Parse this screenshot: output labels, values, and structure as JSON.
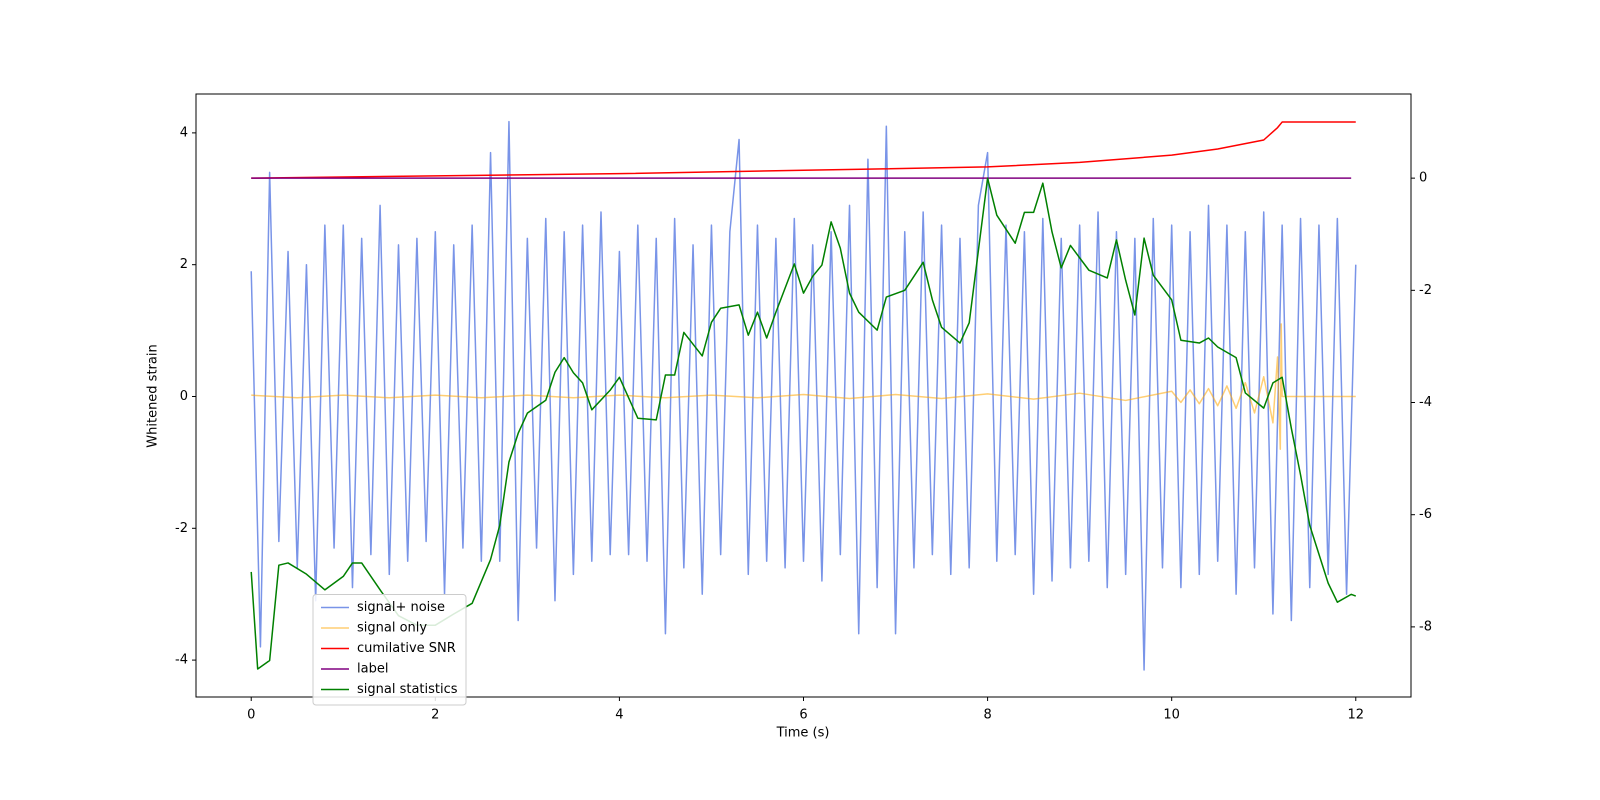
{
  "chart_data": {
    "type": "line",
    "xlabel": "Time (s)",
    "ylabel": "Whitened strain",
    "xlim": [
      -0.6,
      12.6
    ],
    "xticks": [
      0,
      2,
      4,
      6,
      8,
      10,
      12
    ],
    "ylim": [
      -4.56,
      4.59
    ],
    "yticks": [
      -4,
      -2,
      0,
      2,
      4
    ],
    "y2lim": [
      -9.25,
      1.5
    ],
    "y2ticks": [
      -8,
      -6,
      -4,
      -2,
      0
    ],
    "legend": "lower left",
    "series": [
      {
        "name": "signal+ noise",
        "color": "#7994e8",
        "x": [
          0,
          0.1,
          0.2,
          0.3,
          0.4,
          0.5,
          0.6,
          0.7,
          0.8,
          0.9,
          1,
          1.1,
          1.2,
          1.3,
          1.4,
          1.5,
          1.6,
          1.7,
          1.8,
          1.9,
          2,
          2.1,
          2.2,
          2.3,
          2.4,
          2.5,
          2.6,
          2.7,
          2.8,
          2.9,
          3,
          3.1,
          3.2,
          3.3,
          3.4,
          3.5,
          3.6,
          3.7,
          3.8,
          3.9,
          4,
          4.1,
          4.2,
          4.3,
          4.4,
          4.5,
          4.6,
          4.7,
          4.8,
          4.9,
          5,
          5.1,
          5.2,
          5.3,
          5.4,
          5.5,
          5.6,
          5.7,
          5.8,
          5.9,
          6,
          6.1,
          6.2,
          6.3,
          6.4,
          6.5,
          6.6,
          6.7,
          6.8,
          6.9,
          7,
          7.1,
          7.2,
          7.3,
          7.4,
          7.5,
          7.6,
          7.7,
          7.8,
          7.9,
          8,
          8.1,
          8.2,
          8.3,
          8.4,
          8.5,
          8.6,
          8.7,
          8.8,
          8.9,
          9,
          9.1,
          9.2,
          9.3,
          9.4,
          9.5,
          9.6,
          9.7,
          9.8,
          9.9,
          10,
          10.1,
          10.2,
          10.3,
          10.4,
          10.5,
          10.6,
          10.7,
          10.8,
          10.9,
          11,
          11.1,
          11.2,
          11.3,
          11.4,
          11.5,
          11.6,
          11.7,
          11.8,
          11.9,
          12
        ],
        "values": [
          1.9,
          -3.8,
          3.4,
          -2.2,
          2.2,
          -2.6,
          2.0,
          -3.1,
          2.6,
          -2.3,
          2.6,
          -2.9,
          2.4,
          -2.4,
          2.9,
          -2.7,
          2.3,
          -2.5,
          2.4,
          -2.2,
          2.5,
          -3.0,
          2.3,
          -2.3,
          2.6,
          -2.5,
          3.7,
          -2.5,
          4.17,
          -3.4,
          2.4,
          -2.3,
          2.7,
          -3.1,
          2.5,
          -2.7,
          2.6,
          -2.5,
          2.8,
          -2.4,
          2.2,
          -2.4,
          2.6,
          -2.5,
          2.4,
          -3.6,
          2.7,
          -2.6,
          2.3,
          -3.0,
          2.6,
          -2.4,
          2.5,
          3.9,
          -2.7,
          2.6,
          -2.5,
          2.4,
          -2.6,
          2.7,
          -2.5,
          2.3,
          -2.8,
          2.5,
          -2.4,
          2.9,
          -3.6,
          3.6,
          -2.9,
          4.1,
          -3.6,
          2.5,
          -2.6,
          2.8,
          -2.4,
          2.6,
          -2.7,
          2.4,
          -2.6,
          2.9,
          3.7,
          -2.5,
          2.6,
          -2.4,
          2.5,
          -3.0,
          2.7,
          -2.8,
          2.4,
          -2.6,
          2.6,
          -2.5,
          2.8,
          -2.9,
          2.5,
          -2.7,
          2.4,
          -4.15,
          2.7,
          -2.6,
          2.6,
          -2.9,
          2.5,
          -2.7,
          2.9,
          -2.5,
          2.6,
          -3.0,
          2.5,
          -2.6,
          2.8,
          -3.3,
          2.6,
          -3.4,
          2.7,
          -2.9,
          2.6,
          -2.7,
          2.7,
          -3.0,
          2.0
        ]
      },
      {
        "name": "signal only",
        "color": "#ffa500",
        "x": [
          0,
          0.5,
          1,
          1.5,
          2,
          2.5,
          3,
          3.5,
          4,
          4.5,
          5,
          5.5,
          6,
          6.5,
          7,
          7.5,
          8,
          8.5,
          9,
          9.5,
          10,
          10.1,
          10.2,
          10.3,
          10.4,
          10.5,
          10.6,
          10.7,
          10.8,
          10.9,
          11,
          11.1,
          11.15,
          11.18,
          11.19,
          11.2,
          12
        ],
        "values": [
          0.02,
          -0.02,
          0.02,
          -0.02,
          0.02,
          -0.02,
          0.02,
          -0.02,
          0.02,
          -0.02,
          0.02,
          -0.02,
          0.03,
          -0.03,
          0.03,
          -0.03,
          0.04,
          -0.04,
          0.05,
          -0.06,
          0.08,
          -0.09,
          0.1,
          -0.11,
          0.12,
          -0.14,
          0.16,
          -0.18,
          0.21,
          -0.25,
          0.3,
          -0.4,
          0.6,
          -0.8,
          1.1,
          0,
          0
        ]
      },
      {
        "name": "cumilative SNR",
        "color": "red",
        "axis": "y2",
        "x": [
          0,
          2,
          4,
          6,
          8,
          9,
          10,
          10.5,
          11,
          11.15,
          11.2,
          12
        ],
        "values": [
          0,
          0.04,
          0.08,
          0.14,
          0.2,
          0.28,
          0.41,
          0.52,
          0.68,
          0.9,
          1.0,
          1.0
        ]
      },
      {
        "name": "label",
        "color": "purple",
        "axis": "y2",
        "x": [
          0,
          11.95
        ],
        "values": [
          0,
          0
        ]
      },
      {
        "name": "signal statistics",
        "color": "green",
        "axis": "y2",
        "x": [
          0,
          0.07,
          0.2,
          0.3,
          0.4,
          0.6,
          0.8,
          1.0,
          1.1,
          1.2,
          1.4,
          1.6,
          1.8,
          2.0,
          2.2,
          2.4,
          2.6,
          2.7,
          2.8,
          2.9,
          3.0,
          3.2,
          3.3,
          3.4,
          3.5,
          3.6,
          3.7,
          3.9,
          4.0,
          4.2,
          4.4,
          4.5,
          4.6,
          4.7,
          4.9,
          5.0,
          5.1,
          5.3,
          5.4,
          5.5,
          5.6,
          5.7,
          5.9,
          6.0,
          6.1,
          6.2,
          6.3,
          6.4,
          6.5,
          6.6,
          6.8,
          6.9,
          7.1,
          7.3,
          7.4,
          7.5,
          7.7,
          7.8,
          8.0,
          8.1,
          8.3,
          8.4,
          8.5,
          8.6,
          8.7,
          8.8,
          8.9,
          9.1,
          9.3,
          9.4,
          9.5,
          9.6,
          9.7,
          9.8,
          10.0,
          10.1,
          10.3,
          10.4,
          10.5,
          10.7,
          10.8,
          11.0,
          11.1,
          11.2,
          11.3,
          11.4,
          11.5,
          11.7,
          11.8,
          11.95,
          12.0
        ],
        "values": [
          -7.02,
          -8.75,
          -8.6,
          -6.9,
          -6.86,
          -7.06,
          -7.34,
          -7.1,
          -6.86,
          -6.86,
          -7.34,
          -7.8,
          -7.97,
          -7.97,
          -7.77,
          -7.58,
          -6.8,
          -6.19,
          -5.06,
          -4.55,
          -4.19,
          -3.96,
          -3.46,
          -3.2,
          -3.47,
          -3.65,
          -4.13,
          -3.78,
          -3.55,
          -4.28,
          -4.31,
          -3.51,
          -3.51,
          -2.75,
          -3.17,
          -2.57,
          -2.32,
          -2.26,
          -2.8,
          -2.39,
          -2.85,
          -2.39,
          -1.53,
          -2.05,
          -1.75,
          -1.55,
          -0.78,
          -1.25,
          -2.05,
          -2.39,
          -2.71,
          -2.12,
          -2.0,
          -1.5,
          -2.17,
          -2.66,
          -2.94,
          -2.58,
          0,
          -0.66,
          -1.16,
          -0.61,
          -0.61,
          -0.09,
          -0.96,
          -1.6,
          -1.2,
          -1.64,
          -1.78,
          -1.1,
          -1.82,
          -2.44,
          -1.07,
          -1.73,
          -2.17,
          -2.89,
          -2.94,
          -2.85,
          -3.01,
          -3.2,
          -3.83,
          -4.1,
          -3.65,
          -3.55,
          -4.46,
          -5.29,
          -6.19,
          -7.22,
          -7.56,
          -7.42,
          -7.45
        ]
      }
    ]
  }
}
